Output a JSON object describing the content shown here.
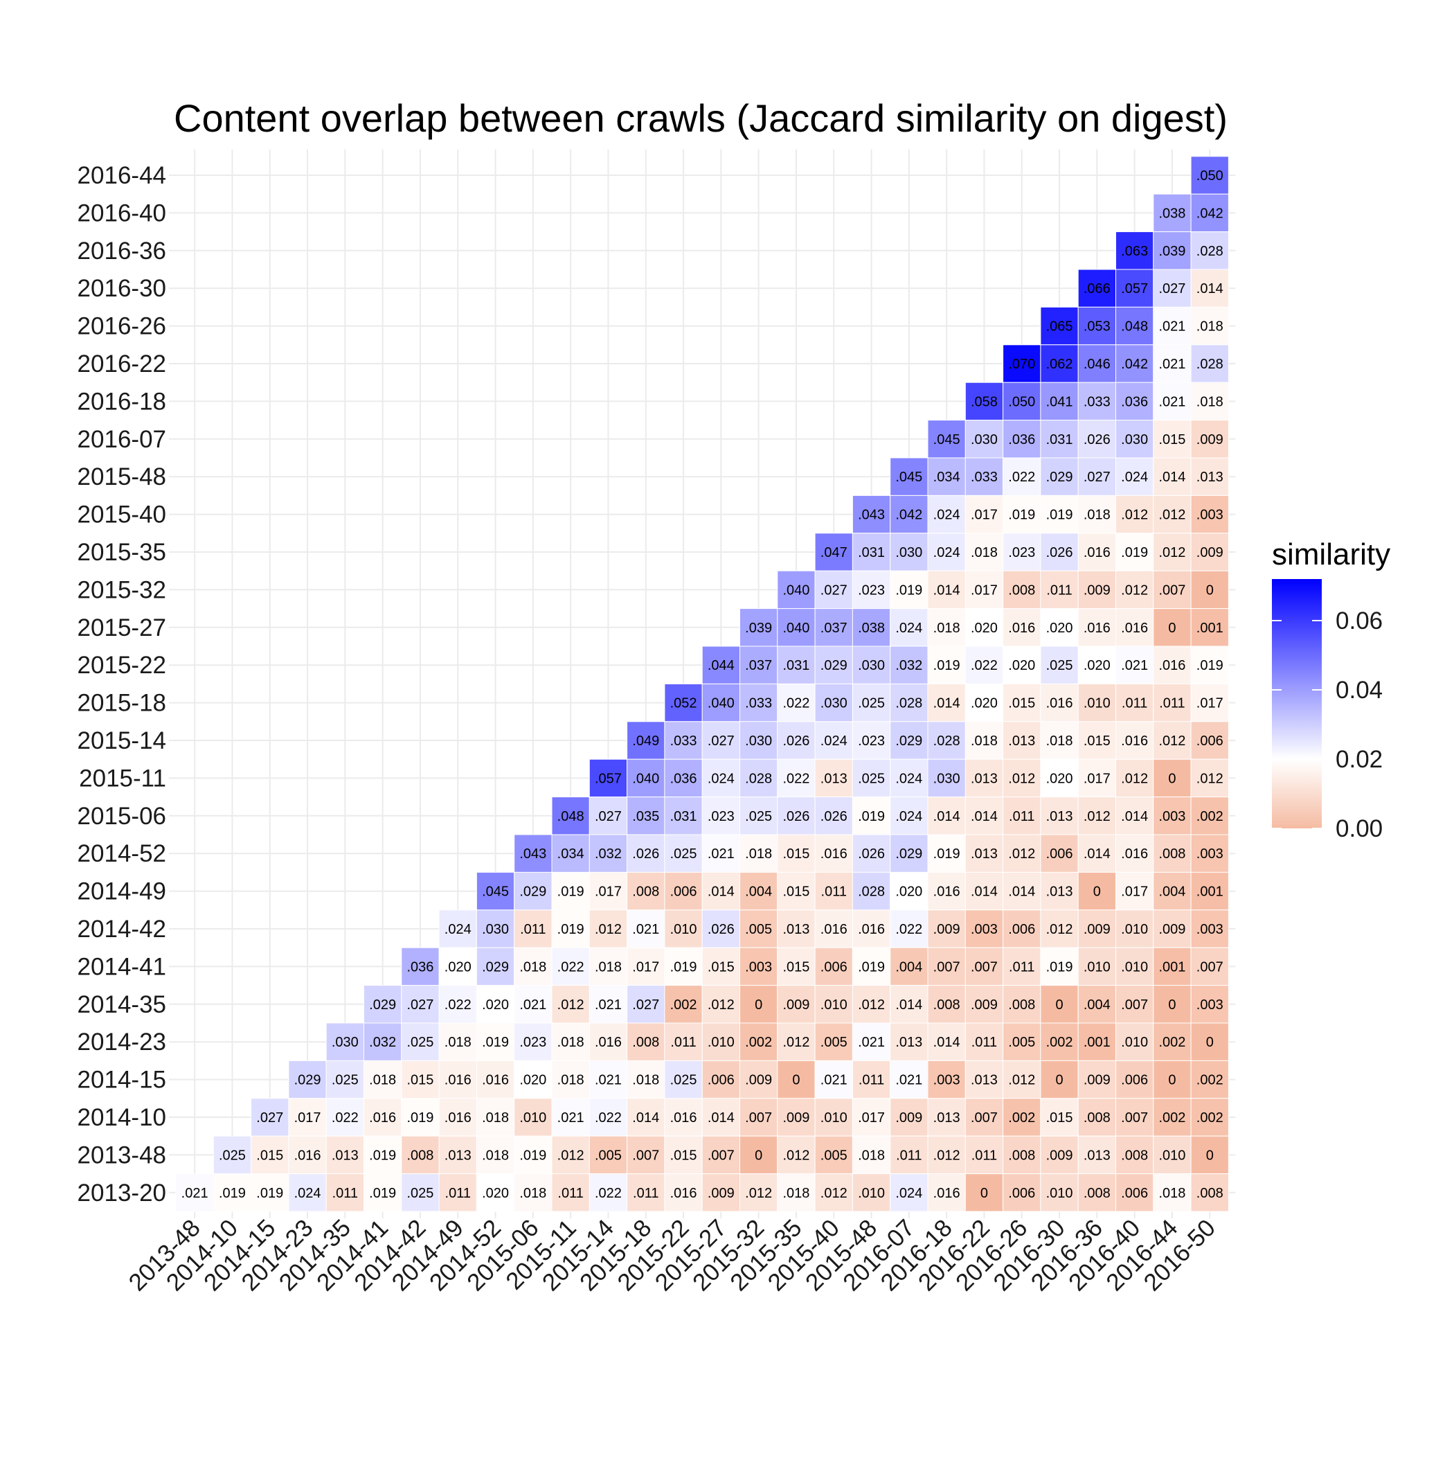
{
  "chart_data": {
    "type": "heatmap",
    "title": "Content overlap between crawls (Jaccard similarity on digest)",
    "xlabel": "",
    "ylabel": "",
    "x_categories": [
      "2013-48",
      "2014-10",
      "2014-15",
      "2014-23",
      "2014-35",
      "2014-41",
      "2014-42",
      "2014-49",
      "2014-52",
      "2015-06",
      "2015-11",
      "2015-14",
      "2015-18",
      "2015-22",
      "2015-27",
      "2015-32",
      "2015-35",
      "2015-40",
      "2015-48",
      "2016-07",
      "2016-18",
      "2016-22",
      "2016-26",
      "2016-30",
      "2016-36",
      "2016-40",
      "2016-44",
      "2016-50"
    ],
    "y_categories": [
      "2013-20",
      "2013-48",
      "2014-10",
      "2014-15",
      "2014-23",
      "2014-35",
      "2014-41",
      "2014-42",
      "2014-49",
      "2014-52",
      "2015-06",
      "2015-11",
      "2015-14",
      "2015-18",
      "2015-22",
      "2015-27",
      "2015-32",
      "2015-35",
      "2015-40",
      "2015-48",
      "2016-07",
      "2016-18",
      "2016-22",
      "2016-26",
      "2016-30",
      "2016-36",
      "2016-40",
      "2016-44"
    ],
    "rows": [
      {
        "y": "2016-44",
        "labels": [
          ".050"
        ]
      },
      {
        "y": "2016-40",
        "labels": [
          ".038",
          ".042"
        ]
      },
      {
        "y": "2016-36",
        "labels": [
          ".063",
          ".039",
          ".028"
        ]
      },
      {
        "y": "2016-30",
        "labels": [
          ".066",
          ".057",
          ".027",
          ".014"
        ]
      },
      {
        "y": "2016-26",
        "labels": [
          ".065",
          ".053",
          ".048",
          ".021",
          ".018"
        ]
      },
      {
        "y": "2016-22",
        "labels": [
          ".070",
          ".062",
          ".046",
          ".042",
          ".021",
          ".028"
        ]
      },
      {
        "y": "2016-18",
        "labels": [
          ".058",
          ".050",
          ".041",
          ".033",
          ".036",
          ".021",
          ".018"
        ]
      },
      {
        "y": "2016-07",
        "labels": [
          ".045",
          ".030",
          ".036",
          ".031",
          ".026",
          ".030",
          ".015",
          ".009"
        ]
      },
      {
        "y": "2015-48",
        "labels": [
          ".045",
          ".034",
          ".033",
          ".022",
          ".029",
          ".027",
          ".024",
          ".014",
          ".013"
        ]
      },
      {
        "y": "2015-40",
        "labels": [
          ".043",
          ".042",
          ".024",
          ".017",
          ".019",
          ".019",
          ".018",
          ".012",
          ".012",
          ".003"
        ]
      },
      {
        "y": "2015-35",
        "labels": [
          ".047",
          ".031",
          ".030",
          ".024",
          ".018",
          ".023",
          ".026",
          ".016",
          ".019",
          ".012",
          ".009"
        ]
      },
      {
        "y": "2015-32",
        "labels": [
          ".040",
          ".027",
          ".023",
          ".019",
          ".014",
          ".017",
          ".008",
          ".011",
          ".009",
          ".012",
          ".007",
          "0"
        ]
      },
      {
        "y": "2015-27",
        "labels": [
          ".039",
          ".040",
          ".037",
          ".038",
          ".024",
          ".018",
          ".020",
          ".016",
          ".020",
          ".016",
          ".016",
          "0",
          ".001"
        ]
      },
      {
        "y": "2015-22",
        "labels": [
          ".044",
          ".037",
          ".031",
          ".029",
          ".030",
          ".032",
          ".019",
          ".022",
          ".020",
          ".025",
          ".020",
          ".021",
          ".016",
          ".019"
        ]
      },
      {
        "y": "2015-18",
        "labels": [
          ".052",
          ".040",
          ".033",
          ".022",
          ".030",
          ".025",
          ".028",
          ".014",
          ".020",
          ".015",
          ".016",
          ".010",
          ".011",
          ".011",
          ".017"
        ]
      },
      {
        "y": "2015-14",
        "labels": [
          ".049",
          ".033",
          ".027",
          ".030",
          ".026",
          ".024",
          ".023",
          ".029",
          ".028",
          ".018",
          ".013",
          ".018",
          ".015",
          ".016",
          ".012",
          ".006"
        ]
      },
      {
        "y": "2015-11",
        "labels": [
          ".057",
          ".040",
          ".036",
          ".024",
          ".028",
          ".022",
          ".013",
          ".025",
          ".024",
          ".030",
          ".013",
          ".012",
          ".020",
          ".017",
          ".012",
          "0",
          ".012"
        ]
      },
      {
        "y": "2015-06",
        "labels": [
          ".048",
          ".027",
          ".035",
          ".031",
          ".023",
          ".025",
          ".026",
          ".026",
          ".019",
          ".024",
          ".014",
          ".014",
          ".011",
          ".013",
          ".012",
          ".014",
          ".003",
          ".002"
        ]
      },
      {
        "y": "2014-52",
        "labels": [
          ".043",
          ".034",
          ".032",
          ".026",
          ".025",
          ".021",
          ".018",
          ".015",
          ".016",
          ".026",
          ".029",
          ".019",
          ".013",
          ".012",
          ".006",
          ".014",
          ".016",
          ".008",
          ".003"
        ]
      },
      {
        "y": "2014-49",
        "labels": [
          ".045",
          ".029",
          ".019",
          ".017",
          ".008",
          ".006",
          ".014",
          ".004",
          ".015",
          ".011",
          ".028",
          ".020",
          ".016",
          ".014",
          ".014",
          ".013",
          "0",
          ".017",
          ".004",
          ".001"
        ]
      },
      {
        "y": "2014-42",
        "labels": [
          ".024",
          ".030",
          ".011",
          ".019",
          ".012",
          ".021",
          ".010",
          ".026",
          ".005",
          ".013",
          ".016",
          ".016",
          ".022",
          ".009",
          ".003",
          ".006",
          ".012",
          ".009",
          ".010",
          ".009",
          ".003"
        ]
      },
      {
        "y": "2014-41",
        "labels": [
          ".036",
          ".020",
          ".029",
          ".018",
          ".022",
          ".018",
          ".017",
          ".019",
          ".015",
          ".003",
          ".015",
          ".006",
          ".019",
          ".004",
          ".007",
          ".007",
          ".011",
          ".019",
          ".010",
          ".010",
          ".001",
          ".007"
        ]
      },
      {
        "y": "2014-35",
        "labels": [
          ".029",
          ".027",
          ".022",
          ".020",
          ".021",
          ".012",
          ".021",
          ".027",
          ".002",
          ".012",
          "0",
          ".009",
          ".010",
          ".012",
          ".014",
          ".008",
          ".009",
          ".008",
          "0",
          ".004",
          ".007",
          "0",
          ".003"
        ]
      },
      {
        "y": "2014-23",
        "labels": [
          ".030",
          ".032",
          ".025",
          ".018",
          ".019",
          ".023",
          ".018",
          ".016",
          ".008",
          ".011",
          ".010",
          ".002",
          ".012",
          ".005",
          ".021",
          ".013",
          ".014",
          ".011",
          ".005",
          ".002",
          ".001",
          ".010",
          ".002",
          "0"
        ]
      },
      {
        "y": "2014-15",
        "labels": [
          ".029",
          ".025",
          ".018",
          ".015",
          ".016",
          ".016",
          ".020",
          ".018",
          ".021",
          ".018",
          ".025",
          ".006",
          ".009",
          "0",
          ".021",
          ".011",
          ".021",
          ".003",
          ".013",
          ".012",
          "0",
          ".009",
          ".006",
          "0",
          ".002"
        ]
      },
      {
        "y": "2014-10",
        "labels": [
          ".027",
          ".017",
          ".022",
          ".016",
          ".019",
          ".016",
          ".018",
          ".010",
          ".021",
          ".022",
          ".014",
          ".016",
          ".014",
          ".007",
          ".009",
          ".010",
          ".017",
          ".009",
          ".013",
          ".007",
          ".002",
          ".015",
          ".008",
          ".007",
          ".002",
          ".002"
        ]
      },
      {
        "y": "2013-48",
        "labels": [
          ".025",
          ".015",
          ".016",
          ".013",
          ".019",
          ".008",
          ".013",
          ".018",
          ".019",
          ".012",
          ".005",
          ".007",
          ".015",
          ".007",
          "0",
          ".012",
          ".005",
          ".018",
          ".011",
          ".012",
          ".011",
          ".008",
          ".009",
          ".013",
          ".008",
          ".010",
          "0"
        ]
      },
      {
        "y": "2013-20",
        "labels": [
          ".021",
          ".019",
          ".019",
          ".024",
          ".011",
          ".019",
          ".025",
          ".011",
          ".020",
          ".018",
          ".011",
          ".022",
          ".011",
          ".016",
          ".009",
          ".012",
          ".018",
          ".012",
          ".010",
          ".024",
          ".016",
          "0",
          ".006",
          ".010",
          ".008",
          ".006",
          ".018",
          ".008"
        ]
      }
    ],
    "legend": {
      "title": "similarity",
      "ticks": [
        "0.00",
        "0.02",
        "0.04",
        "0.06"
      ],
      "tick_values": [
        0,
        0.02,
        0.04,
        0.06
      ],
      "range": [
        0,
        0.072
      ],
      "placement": "right"
    },
    "colors": {
      "low": "#f5bba2",
      "mid": "#ffffff",
      "high": "#0000ff",
      "midpoint": 0.02
    }
  }
}
